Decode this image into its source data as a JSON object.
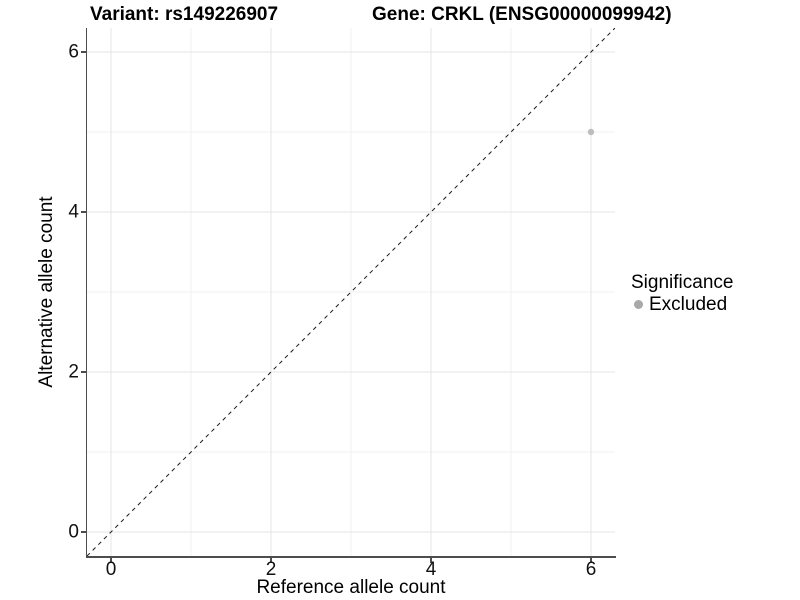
{
  "header": {
    "variant_title": "Variant: rs149226907",
    "gene_title": "Gene: CRKL (ENSG00000099942)"
  },
  "chart_data": {
    "type": "scatter",
    "title": "Variant: rs149226907 | Gene: CRKL (ENSG00000099942)",
    "xlabel": "Reference allele count",
    "ylabel": "Alternative allele count",
    "xlim": [
      -0.3,
      6.3
    ],
    "ylim": [
      -0.3,
      6.3
    ],
    "x_major_ticks": [
      0,
      2,
      4,
      6
    ],
    "y_major_ticks": [
      0,
      2,
      4,
      6
    ],
    "x_minor_gridlines": [
      1,
      3,
      5
    ],
    "y_minor_gridlines": [
      1,
      3,
      5
    ],
    "grid": "on",
    "aspect": "equal",
    "legend_position": "right",
    "series": [
      {
        "name": "Excluded",
        "color": "#bdbdbd",
        "point_radius": 3.2,
        "points": [
          [
            6,
            5
          ]
        ]
      }
    ],
    "identity_line": {
      "style": "dashed",
      "color": "#1a1a1a",
      "dash": "4 4",
      "from": [
        -0.3,
        -0.3
      ],
      "to": [
        6.3,
        6.3
      ]
    },
    "legend": {
      "title": "Significance",
      "entries": [
        {
          "label": "Excluded",
          "color": "#a8a8a8"
        }
      ]
    },
    "colors": {
      "major_gridline": "#e4e4e4",
      "minor_gridline": "#f1f1f1",
      "axis_line": "#4d4d4d"
    }
  }
}
